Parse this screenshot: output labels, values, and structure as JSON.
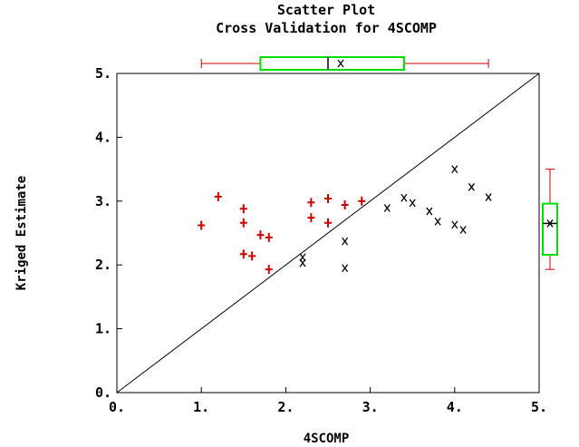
{
  "chart_data": {
    "type": "scatter",
    "title": "Scatter Plot",
    "subtitle": "Cross Validation for 4SCOMP",
    "xlabel": "4SCOMP",
    "ylabel": "Kriged Estimate",
    "xlim": [
      0,
      5
    ],
    "ylim": [
      0,
      5
    ],
    "x_ticks": [
      "0.",
      "1.",
      "2.",
      "3.",
      "4.",
      "5."
    ],
    "y_ticks": [
      "0.",
      "1.",
      "2.",
      "3.",
      "4.",
      "5."
    ],
    "reference_line": {
      "from": [
        0,
        0
      ],
      "to": [
        5,
        5
      ]
    },
    "colors": {
      "under": "#cc0000",
      "over": "#000000",
      "box": "#00dd00",
      "whisker": "#cc0000",
      "frame": "#000000"
    },
    "series": [
      {
        "marker": "plus",
        "color": "#cc0000",
        "points": [
          [
            1.0,
            2.62
          ],
          [
            1.2,
            3.07
          ],
          [
            1.5,
            2.88
          ],
          [
            1.5,
            2.66
          ],
          [
            1.5,
            2.17
          ],
          [
            1.6,
            2.14
          ],
          [
            1.7,
            2.47
          ],
          [
            1.8,
            2.43
          ],
          [
            1.8,
            1.93
          ],
          [
            2.3,
            2.98
          ],
          [
            2.3,
            2.74
          ],
          [
            2.5,
            3.04
          ],
          [
            2.5,
            2.66
          ],
          [
            2.7,
            2.94
          ],
          [
            2.9,
            3.0
          ]
        ]
      },
      {
        "marker": "x",
        "color": "#000000",
        "points": [
          [
            2.2,
            2.12
          ],
          [
            2.2,
            2.03
          ],
          [
            2.7,
            2.37
          ],
          [
            2.7,
            1.95
          ],
          [
            3.2,
            2.89
          ],
          [
            3.4,
            3.05
          ],
          [
            3.5,
            2.97
          ],
          [
            3.7,
            2.84
          ],
          [
            3.8,
            2.68
          ],
          [
            4.0,
            3.5
          ],
          [
            4.0,
            2.63
          ],
          [
            4.1,
            2.55
          ],
          [
            4.2,
            3.22
          ],
          [
            4.4,
            3.06
          ]
        ]
      }
    ],
    "x_boxplot": {
      "min": 1.0,
      "q1": 1.7,
      "median": 2.5,
      "mean": 2.65,
      "q3": 3.4,
      "max": 4.4
    },
    "y_boxplot": {
      "min": 1.93,
      "q1": 2.16,
      "median": 2.65,
      "mean": 2.65,
      "q3": 2.96,
      "max": 3.5
    }
  }
}
